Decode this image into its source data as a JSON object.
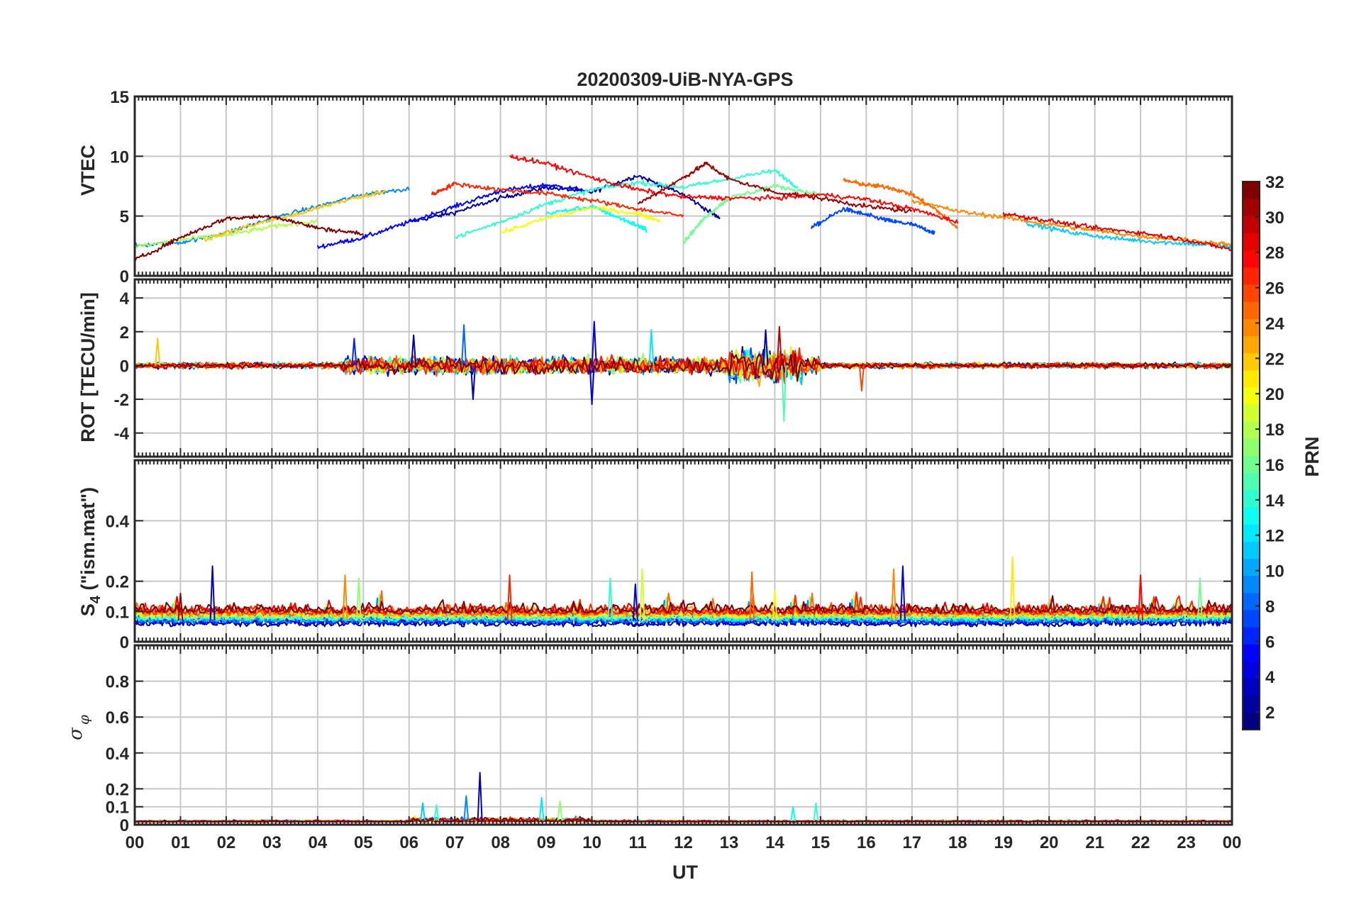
{
  "chart_data": {
    "title": "20200309-UiB-NYA-GPS",
    "xlabel": "UT",
    "x_tick_labels": [
      "00",
      "01",
      "02",
      "03",
      "04",
      "05",
      "06",
      "07",
      "08",
      "09",
      "10",
      "11",
      "12",
      "13",
      "14",
      "15",
      "16",
      "17",
      "18",
      "19",
      "20",
      "21",
      "22",
      "23",
      "00"
    ],
    "xlim": [
      0,
      24
    ],
    "colorbar": {
      "label": "PRN",
      "range": [
        1,
        32
      ],
      "ticks": [
        "2",
        "4",
        "6",
        "8",
        "10",
        "12",
        "14",
        "16",
        "18",
        "20",
        "22",
        "24",
        "26",
        "28",
        "30",
        "32"
      ],
      "colormap": "jet"
    },
    "panels": [
      {
        "id": "vtec",
        "type": "line",
        "ylabel": "VTEC",
        "ylim": [
          0,
          15
        ],
        "ytick_labels": [
          "0",
          "5",
          "10",
          "15"
        ],
        "ytick_values": [
          0,
          5,
          10,
          15
        ],
        "series": [
          {
            "prn": 2,
            "x": [
              6.0,
              7.0,
              8.0,
              9.0,
              10.0,
              11.0,
              12.0,
              12.8
            ],
            "y": [
              4.5,
              5.3,
              6.5,
              7.4,
              7.0,
              8.4,
              6.8,
              4.8
            ]
          },
          {
            "prn": 5,
            "x": [
              4.0,
              5.0,
              6.0,
              7.0,
              8.0,
              9.0,
              9.8
            ],
            "y": [
              2.4,
              3.2,
              4.5,
              5.8,
              7.1,
              7.6,
              7.2
            ]
          },
          {
            "prn": 7,
            "x": [
              14.8,
              15.5,
              16.0,
              16.5,
              17.0,
              17.5
            ],
            "y": [
              4.0,
              5.6,
              5.1,
              4.6,
              4.3,
              3.6
            ]
          },
          {
            "prn": 9,
            "x": [
              0.0,
              1.0,
              2.0,
              3.0,
              4.0,
              5.0,
              6.0
            ],
            "y": [
              2.5,
              2.8,
              3.6,
              4.8,
              5.8,
              6.8,
              7.3
            ]
          },
          {
            "prn": 11,
            "x": [
              19.5,
              20.5,
              21.5,
              22.5,
              23.5,
              24.0
            ],
            "y": [
              4.4,
              3.6,
              3.1,
              2.8,
              2.6,
              2.4
            ]
          },
          {
            "prn": 13,
            "x": [
              9.0,
              10.0,
              10.5,
              11.0,
              11.2
            ],
            "y": [
              5.2,
              5.8,
              5.0,
              4.2,
              3.8
            ]
          },
          {
            "prn": 14,
            "x": [
              7.0,
              8.0,
              9.0,
              10.0,
              11.0,
              12.0,
              13.0,
              14.0,
              14.5
            ],
            "y": [
              3.2,
              4.5,
              6.0,
              7.2,
              7.8,
              7.4,
              8.1,
              8.8,
              7.4
            ]
          },
          {
            "prn": 16,
            "x": [
              12.0,
              12.5,
              13.0,
              14.0,
              15.0
            ],
            "y": [
              2.8,
              5.0,
              6.5,
              7.5,
              6.8
            ]
          },
          {
            "prn": 18,
            "x": [
              0.0,
              1.0,
              2.0,
              3.0,
              4.0
            ],
            "y": [
              2.4,
              3.0,
              3.4,
              4.1,
              4.6
            ]
          },
          {
            "prn": 20,
            "x": [
              8.0,
              9.0,
              10.0,
              11.0,
              11.5
            ],
            "y": [
              3.6,
              4.8,
              5.7,
              5.2,
              4.6
            ]
          },
          {
            "prn": 22,
            "x": [
              1.5,
              2.5,
              3.5,
              4.5,
              5.5
            ],
            "y": [
              3.0,
              4.2,
              5.1,
              6.2,
              7.1
            ]
          },
          {
            "prn": 24,
            "x": [
              17.0,
              18.0,
              19.0,
              20.0,
              21.0,
              22.0,
              23.0,
              24.0
            ],
            "y": [
              6.3,
              5.4,
              4.9,
              4.3,
              3.8,
              3.3,
              3.0,
              2.6
            ]
          },
          {
            "prn": 25,
            "x": [
              15.5,
              16.0,
              16.5,
              17.0,
              17.5,
              18.0
            ],
            "y": [
              8.0,
              7.6,
              7.4,
              6.8,
              5.6,
              4.0
            ]
          },
          {
            "prn": 27,
            "x": [
              6.5,
              7.0,
              8.0,
              9.0,
              10.0,
              11.0,
              12.0
            ],
            "y": [
              6.8,
              7.7,
              7.2,
              6.9,
              6.3,
              5.6,
              5.0
            ]
          },
          {
            "prn": 28,
            "x": [
              8.2,
              9.0,
              10.0,
              11.0,
              12.0,
              13.0,
              14.0,
              15.0,
              16.0,
              17.0,
              18.0
            ],
            "y": [
              10.0,
              9.4,
              8.2,
              7.2,
              6.6,
              6.5,
              6.5,
              6.8,
              6.4,
              5.6,
              4.5
            ]
          },
          {
            "prn": 29,
            "x": [
              19.0,
              20.0,
              21.0,
              22.0,
              23.0,
              24.0
            ],
            "y": [
              5.2,
              4.6,
              4.0,
              3.6,
              3.0,
              2.2
            ]
          },
          {
            "prn": 31,
            "x": [
              11.0,
              12.0,
              12.5,
              13.0,
              14.0,
              15.0,
              16.0,
              17.0
            ],
            "y": [
              6.0,
              8.2,
              9.4,
              8.1,
              7.0,
              6.5,
              5.8,
              5.4
            ]
          },
          {
            "prn": 32,
            "x": [
              0.0,
              1.0,
              2.0,
              3.0,
              4.0,
              5.0
            ],
            "y": [
              1.3,
              3.2,
              4.8,
              5.0,
              4.0,
              3.5
            ]
          }
        ]
      },
      {
        "id": "rot",
        "type": "line",
        "ylabel": "ROT [TECU/min]",
        "ylim": [
          -5.4,
          5.1
        ],
        "ytick_labels": [
          "-4",
          "-2",
          "0",
          "2",
          "4"
        ],
        "ytick_values": [
          -4,
          -2,
          0,
          2,
          4
        ],
        "spikes": [
          {
            "prn": 4,
            "x": 10.05,
            "y": 2.6
          },
          {
            "prn": 4,
            "x": 10.0,
            "y": -2.3
          },
          {
            "prn": 8,
            "x": 7.2,
            "y": 2.4
          },
          {
            "prn": 3,
            "x": 7.4,
            "y": -2.0
          },
          {
            "prn": 15,
            "x": 14.2,
            "y": -3.3
          },
          {
            "prn": 30,
            "x": 14.1,
            "y": 2.3
          },
          {
            "prn": 2,
            "x": 6.1,
            "y": 1.8
          },
          {
            "prn": 12,
            "x": 11.3,
            "y": 2.1
          },
          {
            "prn": 22,
            "x": 0.5,
            "y": 1.6
          },
          {
            "prn": 6,
            "x": 4.8,
            "y": 1.6
          },
          {
            "prn": 26,
            "x": 15.9,
            "y": -1.5
          },
          {
            "prn": 3,
            "x": 13.8,
            "y": 2.1
          }
        ]
      },
      {
        "id": "s4",
        "type": "line",
        "ylabel": "S4 (\"ism.mat\")",
        "ylabel_main": "S",
        "ylabel_sub": "4",
        "ylabel_rest": " (\"ism.mat\")",
        "ylim": [
          0,
          0.6
        ],
        "ytick_labels": [
          "0",
          "0.1",
          "0.2",
          "0.4"
        ],
        "ytick_values": [
          0,
          0.1,
          0.2,
          0.4
        ],
        "spikes": [
          {
            "prn": 3,
            "x": 1.7,
            "y": 0.25
          },
          {
            "prn": 31,
            "x": 1.0,
            "y": 0.16
          },
          {
            "prn": 24,
            "x": 4.6,
            "y": 0.22
          },
          {
            "prn": 17,
            "x": 4.9,
            "y": 0.21
          },
          {
            "prn": 27,
            "x": 8.2,
            "y": 0.22
          },
          {
            "prn": 14,
            "x": 10.4,
            "y": 0.21
          },
          {
            "prn": 19,
            "x": 11.1,
            "y": 0.24
          },
          {
            "prn": 3,
            "x": 10.95,
            "y": 0.19
          },
          {
            "prn": 25,
            "x": 13.5,
            "y": 0.23
          },
          {
            "prn": 24,
            "x": 16.6,
            "y": 0.24
          },
          {
            "prn": 4,
            "x": 16.8,
            "y": 0.25
          },
          {
            "prn": 21,
            "x": 19.2,
            "y": 0.28
          },
          {
            "prn": 28,
            "x": 22.0,
            "y": 0.22
          },
          {
            "prn": 16,
            "x": 23.3,
            "y": 0.21
          },
          {
            "prn": 20,
            "x": 14.0,
            "y": 0.17
          }
        ]
      },
      {
        "id": "sigma_phi",
        "type": "line",
        "ylabel": "σ φ",
        "ylabel_main": "σ",
        "ylabel_sub": "φ",
        "ylim": [
          0,
          1.0
        ],
        "ytick_labels": [
          "0",
          "0.1",
          "0.2",
          "0.4",
          "0.6",
          "0.8"
        ],
        "ytick_values": [
          0,
          0.1,
          0.2,
          0.4,
          0.6,
          0.8
        ],
        "spikes": [
          {
            "prn": 3,
            "x": 7.55,
            "y": 0.29
          },
          {
            "prn": 9,
            "x": 7.25,
            "y": 0.16
          },
          {
            "prn": 12,
            "x": 8.9,
            "y": 0.15
          },
          {
            "prn": 17,
            "x": 9.3,
            "y": 0.13
          },
          {
            "prn": 11,
            "x": 6.3,
            "y": 0.12
          },
          {
            "prn": 14,
            "x": 6.6,
            "y": 0.11
          },
          {
            "prn": 14,
            "x": 14.9,
            "y": 0.12
          },
          {
            "prn": 13,
            "x": 14.4,
            "y": 0.1
          }
        ]
      }
    ]
  }
}
